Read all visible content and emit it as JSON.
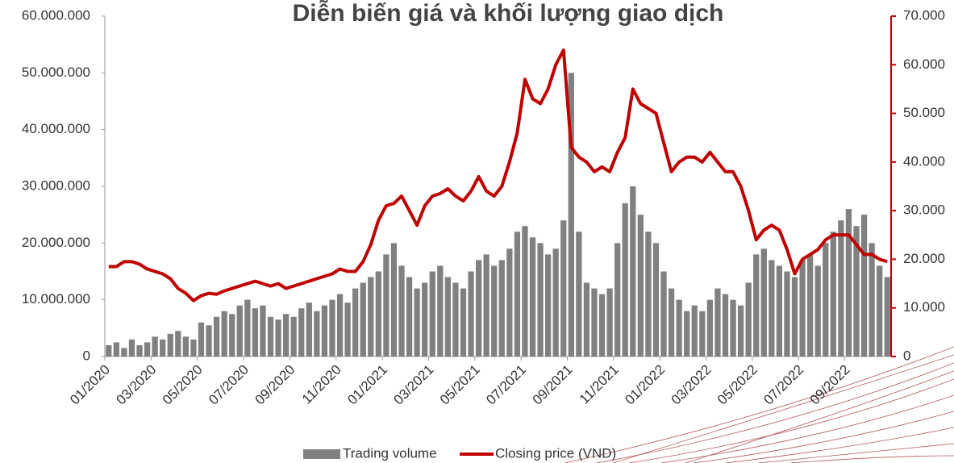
{
  "chart_data": {
    "type": "bar-line",
    "title": "Diễn biến giá và khối lượng giao dịch",
    "categories": [
      "01/2020",
      null,
      null,
      null,
      null,
      null,
      "03/2020",
      null,
      null,
      null,
      null,
      null,
      "05/2020",
      null,
      null,
      null,
      null,
      null,
      "07/2020",
      null,
      null,
      null,
      null,
      null,
      "09/2020",
      null,
      null,
      null,
      null,
      null,
      "11/2020",
      null,
      null,
      null,
      null,
      null,
      "01/2021",
      null,
      null,
      null,
      null,
      null,
      "03/2021",
      null,
      null,
      null,
      null,
      null,
      "05/2021",
      null,
      null,
      null,
      null,
      null,
      "07/2021",
      null,
      null,
      null,
      null,
      null,
      "09/2021",
      null,
      null,
      null,
      null,
      null,
      "11/2021",
      null,
      null,
      null,
      null,
      null,
      "01/2022",
      null,
      null,
      null,
      null,
      null,
      "03/2022",
      null,
      null,
      null,
      null,
      null,
      "05/2022",
      null,
      null,
      null,
      null,
      null,
      "07/2022",
      null,
      null,
      null,
      null,
      null,
      "09/2022",
      null,
      null,
      null,
      null,
      null
    ],
    "series": [
      {
        "name": "Trading volume",
        "color": "#808080",
        "axis": "y",
        "values": [
          2000000,
          2500000,
          1500000,
          3000000,
          2000000,
          2500000,
          3500000,
          3000000,
          4000000,
          4500000,
          3500000,
          3000000,
          6000000,
          5500000,
          7000000,
          8000000,
          7500000,
          9000000,
          10000000,
          8500000,
          9000000,
          7000000,
          6500000,
          7500000,
          7000000,
          8500000,
          9500000,
          8000000,
          9000000,
          10000000,
          11000000,
          9500000,
          12000000,
          13000000,
          14000000,
          15000000,
          18000000,
          20000000,
          16000000,
          14000000,
          12000000,
          13000000,
          15000000,
          16000000,
          14000000,
          13000000,
          12000000,
          15000000,
          17000000,
          18000000,
          16000000,
          17000000,
          19000000,
          22000000,
          23000000,
          21000000,
          20000000,
          18000000,
          19000000,
          24000000,
          50000000,
          22000000,
          13000000,
          12000000,
          11000000,
          12000000,
          20000000,
          27000000,
          30000000,
          25000000,
          22000000,
          20000000,
          15000000,
          12000000,
          10000000,
          8000000,
          9000000,
          8000000,
          10000000,
          12000000,
          11000000,
          10000000,
          9000000,
          13000000,
          18000000,
          19000000,
          17000000,
          16000000,
          15000000,
          14000000,
          17000000,
          18000000,
          16000000,
          20000000,
          22000000,
          24000000,
          26000000,
          23000000,
          25000000,
          20000000,
          16000000,
          14000000
        ]
      },
      {
        "name": "Closing price (VND)",
        "color": "#c00000",
        "axis": "y2",
        "values": [
          18500,
          18500,
          19500,
          19500,
          19000,
          18000,
          17500,
          17000,
          16000,
          14000,
          13000,
          11500,
          12500,
          13000,
          12800,
          13500,
          14000,
          14500,
          15000,
          15500,
          15000,
          14500,
          15000,
          14000,
          14500,
          15000,
          15500,
          16000,
          16500,
          17000,
          18000,
          17500,
          17500,
          19500,
          23000,
          28000,
          31000,
          31500,
          33000,
          30000,
          27000,
          31000,
          33000,
          33500,
          34500,
          33000,
          32000,
          34000,
          37000,
          34000,
          33000,
          35000,
          40000,
          46000,
          57000,
          53000,
          52000,
          55000,
          60000,
          63000,
          43000,
          41000,
          40000,
          38000,
          39000,
          38000,
          42000,
          45000,
          55000,
          52000,
          51000,
          50000,
          44000,
          38000,
          40000,
          41000,
          41000,
          40000,
          42000,
          40000,
          38000,
          38000,
          35000,
          30000,
          24000,
          26000,
          27000,
          26000,
          22000,
          17000,
          20000,
          21000,
          22000,
          24000,
          25000,
          25000,
          25000,
          23000,
          21000,
          21000,
          20000,
          19500
        ]
      }
    ],
    "ylim": [
      0,
      60000000
    ],
    "yticks": [
      0,
      {
        "value": 10000000,
        "label": "10.000.000"
      },
      {
        "value": 20000000,
        "label": "20.000.000"
      },
      {
        "value": 30000000,
        "label": "30.000.000"
      },
      {
        "value": 40000000,
        "label": "40.000.000"
      },
      {
        "value": 50000000,
        "label": "50.000.000"
      },
      {
        "value": 60000000,
        "label": "60.000.000"
      }
    ],
    "y2lim": [
      0,
      70000
    ],
    "y2ticks": [
      0,
      {
        "value": 10000,
        "label": "10.000"
      },
      {
        "value": 20000,
        "label": "20.000"
      },
      {
        "value": 30000,
        "label": "30.000"
      },
      {
        "value": 40000,
        "label": "40.000"
      },
      {
        "value": 50000,
        "label": "50.000"
      },
      {
        "value": 60000,
        "label": "60.000"
      },
      {
        "value": 70000,
        "label": "70.000"
      }
    ]
  }
}
